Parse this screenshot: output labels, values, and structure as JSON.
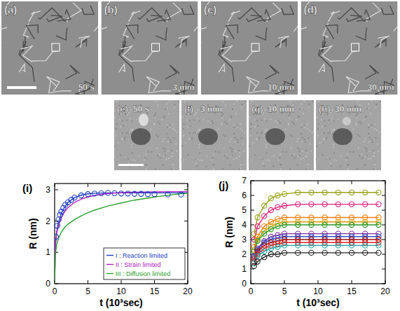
{
  "figure_panels": [
    {
      "label": "(a)",
      "time": "50 s"
    },
    {
      "label": "(b)",
      "time": "3 min"
    },
    {
      "label": "(c)",
      "time": "10 min"
    },
    {
      "label": "(d)",
      "time": "30 min"
    },
    {
      "label": "(e)",
      "time": "50 s"
    },
    {
      "label": "(f)",
      "time": "3 min"
    },
    {
      "label": "(g)",
      "time": "10 min"
    },
    {
      "label": "(h)",
      "time": "30 min"
    }
  ],
  "chart_data": [
    {
      "type": "line",
      "title": "(i)",
      "x_label": "t (10³sec)",
      "y_label": "R (nm)",
      "xlim": [
        0,
        20
      ],
      "ylim": [
        0,
        3.2
      ],
      "xticks": [
        0,
        5,
        10,
        15,
        20
      ],
      "yticks": [
        0,
        1,
        2,
        3
      ],
      "legend": "lower right",
      "series": [
        {
          "name": "I : Reaction limited",
          "color": "#1f3fbf",
          "type": "line",
          "line_style": "solid",
          "x": [
            0,
            0.1,
            0.3,
            0.5,
            1,
            1.5,
            2,
            3,
            4,
            5,
            6,
            8,
            10,
            12,
            15,
            18,
            20
          ],
          "values": [
            0,
            1.2,
            1.65,
            1.9,
            2.25,
            2.45,
            2.6,
            2.75,
            2.83,
            2.87,
            2.89,
            2.9,
            2.9,
            2.9,
            2.9,
            2.9,
            2.9
          ]
        },
        {
          "name": "II : Strain limited",
          "color": "#b020c0",
          "type": "line",
          "line_style": "solid",
          "x": [
            0,
            0.1,
            0.3,
            0.5,
            1,
            1.5,
            2,
            3,
            4,
            5,
            6,
            8,
            10,
            12,
            15,
            18,
            20
          ],
          "values": [
            0,
            1.25,
            1.6,
            1.8,
            2.1,
            2.3,
            2.43,
            2.6,
            2.7,
            2.77,
            2.82,
            2.88,
            2.91,
            2.92,
            2.93,
            2.94,
            2.94
          ]
        },
        {
          "name": "III : Diffusion limited",
          "color": "#2fa02f",
          "type": "line",
          "line_style": "solid",
          "x": [
            0,
            0.1,
            0.3,
            0.5,
            1,
            1.5,
            2,
            3,
            4,
            5,
            6,
            8,
            10,
            12,
            15,
            18,
            20
          ],
          "values": [
            0,
            0.9,
            1.25,
            1.4,
            1.65,
            1.8,
            1.9,
            2.05,
            2.17,
            2.27,
            2.35,
            2.48,
            2.58,
            2.67,
            2.77,
            2.85,
            2.89
          ]
        },
        {
          "color": "#1f3fbf",
          "type": "scatter",
          "marker": "circle",
          "x": [
            0.2,
            0.4,
            0.6,
            0.8,
            1,
            1.3,
            1.6,
            2,
            2.5,
            3,
            4,
            5,
            6,
            7,
            8,
            9,
            10,
            11,
            12,
            13,
            14,
            15,
            17,
            19
          ],
          "values": [
            1.5,
            1.85,
            2.05,
            2.2,
            2.3,
            2.42,
            2.52,
            2.6,
            2.68,
            2.75,
            2.82,
            2.86,
            2.88,
            2.89,
            2.9,
            2.89,
            2.88,
            2.88,
            2.87,
            2.87,
            2.86,
            2.86,
            2.85,
            2.85
          ]
        }
      ]
    },
    {
      "type": "line",
      "title": "(j)",
      "x_label": "t (10³sec)",
      "y_label": "R (nm)",
      "xlim": [
        0,
        20
      ],
      "ylim": [
        0,
        7
      ],
      "xticks": [
        0,
        5,
        10,
        15,
        20
      ],
      "yticks": [
        0,
        1,
        2,
        3,
        4,
        5,
        6,
        7
      ],
      "series": [
        {
          "color": "#9aa21a",
          "type": "line",
          "marker": "circle",
          "x": [
            0.5,
            1,
            2,
            3,
            4,
            5,
            7,
            9,
            11,
            13,
            15,
            17,
            19
          ],
          "values": [
            3.4,
            4.5,
            5.3,
            5.8,
            6.0,
            6.1,
            6.2,
            6.2,
            6.2,
            6.2,
            6.2,
            6.2,
            6.2
          ]
        },
        {
          "color": "#e0207a",
          "type": "line",
          "marker": "circle",
          "x": [
            0.5,
            1,
            2,
            3,
            4,
            5,
            7,
            9,
            11,
            13,
            15,
            17,
            19
          ],
          "values": [
            3.0,
            3.9,
            4.6,
            5.0,
            5.2,
            5.3,
            5.4,
            5.4,
            5.4,
            5.4,
            5.4,
            5.4,
            5.4
          ]
        },
        {
          "color": "#f08010",
          "type": "line",
          "marker": "circle",
          "x": [
            0.5,
            1,
            2,
            3,
            4,
            5,
            7,
            9,
            11,
            13,
            15,
            17,
            19
          ],
          "values": [
            2.5,
            3.2,
            3.9,
            4.2,
            4.4,
            4.5,
            4.5,
            4.5,
            4.5,
            4.5,
            4.5,
            4.5,
            4.5
          ]
        },
        {
          "color": "#d8a000",
          "type": "line",
          "marker": "circle",
          "x": [
            0.5,
            1,
            2,
            3,
            4,
            5,
            7,
            9,
            11,
            13,
            15,
            17,
            19
          ],
          "values": [
            2.3,
            3.0,
            3.6,
            3.9,
            4.1,
            4.2,
            4.2,
            4.2,
            4.2,
            4.2,
            4.2,
            4.2,
            4.2
          ]
        },
        {
          "color": "#2a9a2a",
          "type": "line",
          "marker": "circle",
          "x": [
            0.5,
            1,
            2,
            3,
            4,
            5,
            7,
            9,
            11,
            13,
            15,
            17,
            19
          ],
          "values": [
            2.2,
            2.9,
            3.4,
            3.7,
            3.9,
            4.0,
            4.0,
            4.0,
            4.0,
            4.0,
            4.0,
            4.0,
            4.0
          ]
        },
        {
          "color": "#8030a0",
          "type": "line",
          "marker": "circle",
          "x": [
            0.5,
            1,
            2,
            3,
            4,
            5,
            7,
            9,
            11,
            13,
            15,
            17,
            19
          ],
          "values": [
            1.9,
            2.4,
            2.9,
            3.2,
            3.3,
            3.4,
            3.4,
            3.4,
            3.4,
            3.4,
            3.4,
            3.4,
            3.4
          ]
        },
        {
          "color": "#3050c0",
          "type": "line",
          "marker": "circle",
          "x": [
            0.5,
            1,
            2,
            3,
            4,
            5,
            7,
            9,
            11,
            13,
            15,
            17,
            19
          ],
          "values": [
            1.8,
            2.3,
            2.8,
            3.0,
            3.1,
            3.2,
            3.2,
            3.2,
            3.2,
            3.2,
            3.2,
            3.2,
            3.2
          ]
        },
        {
          "color": "#a01010",
          "type": "line",
          "marker": "circle",
          "x": [
            0.5,
            1,
            2,
            3,
            4,
            5,
            7,
            9,
            11,
            13,
            15,
            17,
            19
          ],
          "values": [
            1.7,
            2.2,
            2.6,
            2.8,
            2.9,
            3.0,
            3.0,
            3.0,
            3.0,
            3.0,
            3.0,
            3.0,
            3.0
          ]
        },
        {
          "color": "#e02020",
          "type": "line",
          "marker": "circle",
          "x": [
            0.5,
            1,
            2,
            3,
            4,
            5,
            7,
            9,
            11,
            13,
            15,
            17,
            19
          ],
          "values": [
            1.5,
            2.0,
            2.4,
            2.6,
            2.7,
            2.8,
            2.8,
            2.8,
            2.8,
            2.8,
            2.8,
            2.8,
            2.8
          ]
        },
        {
          "color": "#20a0a0",
          "type": "line",
          "marker": "circle",
          "x": [
            0.5,
            1,
            2,
            3,
            4,
            5,
            7,
            9,
            11,
            13,
            15,
            17,
            19
          ],
          "values": [
            1.4,
            1.9,
            2.2,
            2.4,
            2.5,
            2.6,
            2.6,
            2.6,
            2.6,
            2.6,
            2.6,
            2.6,
            2.6
          ]
        },
        {
          "color": "#202020",
          "type": "line",
          "marker": "circle",
          "x": [
            0.5,
            1,
            2,
            3,
            4,
            5,
            7,
            9,
            11,
            13,
            15,
            17,
            19
          ],
          "values": [
            1.2,
            1.5,
            1.8,
            2.0,
            2.0,
            2.1,
            2.1,
            2.1,
            2.1,
            2.1,
            2.1,
            2.1,
            2.1
          ]
        }
      ]
    }
  ]
}
